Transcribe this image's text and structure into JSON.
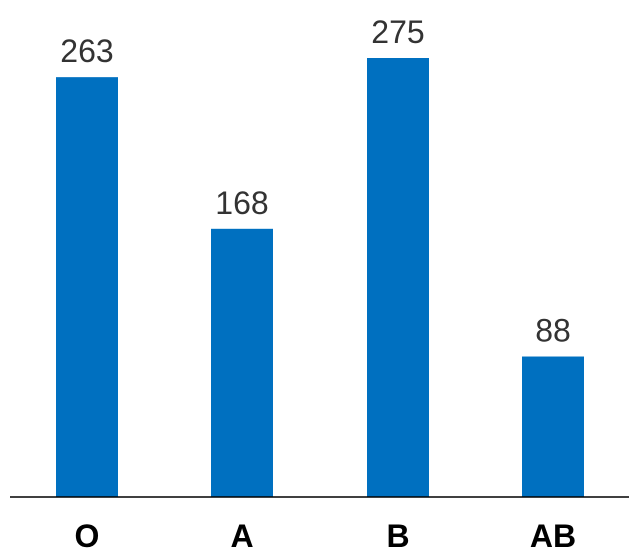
{
  "chart_data": {
    "type": "bar",
    "categories": [
      "O",
      "A",
      "B",
      "AB"
    ],
    "values": [
      263,
      168,
      275,
      88
    ],
    "data_labels": [
      "263",
      "168",
      "275",
      "88"
    ],
    "title": "",
    "xlabel": "",
    "ylabel": "",
    "ylim": [
      0,
      275
    ],
    "grid": false,
    "legend": "none",
    "bar_color": "#0070C0"
  }
}
